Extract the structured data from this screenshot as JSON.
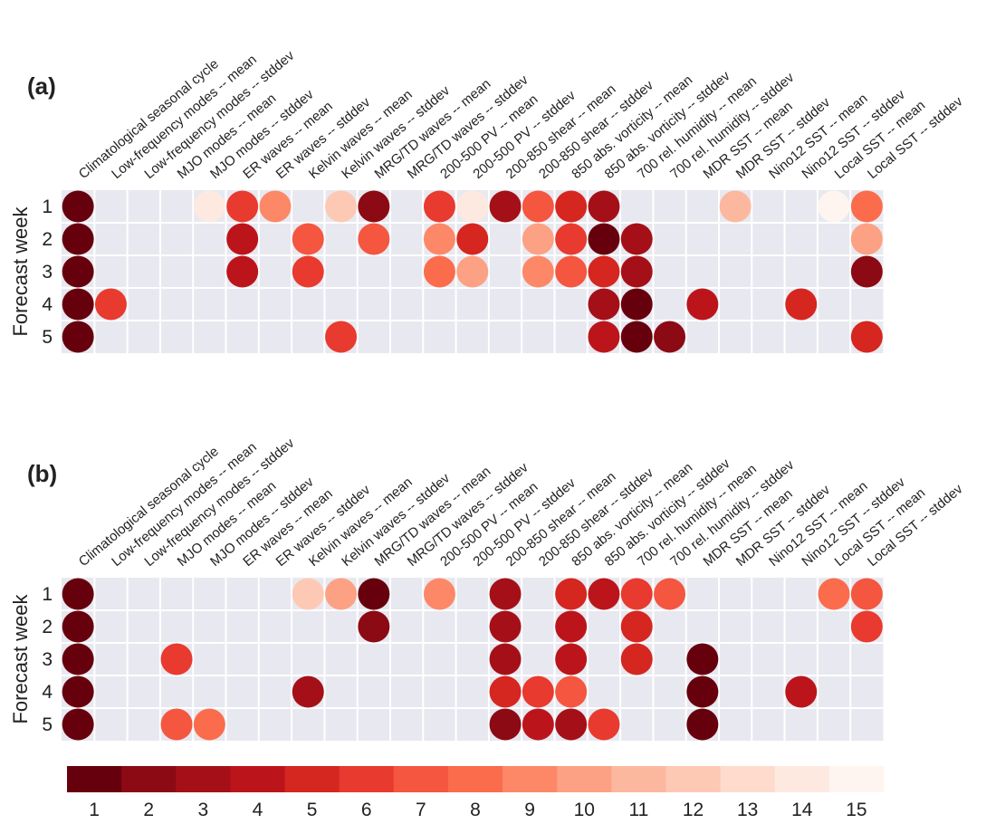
{
  "chart_data": [
    {
      "type": "heatmap",
      "panel_label": "(a)",
      "ylabel": "Forecast week",
      "rows": [
        "1",
        "2",
        "3",
        "4",
        "5"
      ],
      "columns": [
        "Climatological seasonal cycle",
        "Low-frequency modes -- mean",
        "Low-frequency modes -- stddev",
        "MJO modes -- mean",
        "MJO modes -- stddev",
        "ER waves -- mean",
        "ER waves -- stddev",
        "Kelvin waves -- mean",
        "Kelvin waves -- stddev",
        "MRG/TD waves -- mean",
        "MRG/TD waves -- stddev",
        "200-500 PV -- mean",
        "200-500 PV -- stddev",
        "200-850 shear -- mean",
        "200-850 shear -- stddev",
        "850 abs. vorticity -- mean",
        "850 abs. vorticity -- stddev",
        "700 rel. humidity -- mean",
        "700 rel. humidity -- stddev",
        "MDR SST -- mean",
        "MDR SST -- stddev",
        "Nino12 SST -- mean",
        "Nino12 SST -- stddev",
        "Local SST -- mean",
        "Local SST -- stddev"
      ],
      "values": [
        [
          1,
          null,
          null,
          null,
          14,
          6,
          9,
          null,
          12,
          2,
          null,
          6,
          14,
          3,
          7,
          5,
          3,
          null,
          null,
          null,
          11,
          null,
          null,
          15,
          8
        ],
        [
          1,
          null,
          null,
          null,
          null,
          4,
          null,
          7,
          null,
          7,
          null,
          9,
          5,
          null,
          10,
          6,
          1,
          3,
          null,
          null,
          null,
          null,
          null,
          null,
          10
        ],
        [
          1,
          null,
          null,
          null,
          null,
          4,
          null,
          6,
          null,
          null,
          null,
          8,
          10,
          null,
          9,
          7,
          5,
          3,
          null,
          null,
          null,
          null,
          null,
          null,
          2
        ],
        [
          1,
          6,
          null,
          null,
          null,
          null,
          null,
          null,
          null,
          null,
          null,
          null,
          null,
          null,
          null,
          null,
          3,
          1,
          null,
          4,
          null,
          null,
          5,
          null,
          null
        ],
        [
          1,
          null,
          null,
          null,
          null,
          null,
          null,
          null,
          6,
          null,
          null,
          null,
          null,
          null,
          null,
          null,
          4,
          1,
          2,
          null,
          null,
          null,
          null,
          null,
          5
        ]
      ]
    },
    {
      "type": "heatmap",
      "panel_label": "(b)",
      "ylabel": "Forecast week",
      "rows": [
        "1",
        "2",
        "3",
        "4",
        "5"
      ],
      "columns": [
        "Climatological seasonal cycle",
        "Low-frequency modes -- mean",
        "Low-frequency modes -- stddev",
        "MJO modes -- mean",
        "MJO modes -- stddev",
        "ER waves -- mean",
        "ER waves -- stddev",
        "Kelvin waves -- mean",
        "Kelvin waves -- stddev",
        "MRG/TD waves -- mean",
        "MRG/TD waves -- stddev",
        "200-500 PV -- mean",
        "200-500 PV -- stddev",
        "200-850 shear -- mean",
        "200-850 shear -- stddev",
        "850 abs. vorticity -- mean",
        "850 abs. vorticity -- stddev",
        "700 rel. humidity -- mean",
        "700 rel. humidity -- stddev",
        "MDR SST -- mean",
        "MDR SST -- stddev",
        "Nino12 SST -- mean",
        "Nino12 SST -- stddev",
        "Local SST -- mean",
        "Local SST -- stddev"
      ],
      "values": [
        [
          1,
          null,
          null,
          null,
          null,
          null,
          null,
          12,
          10,
          1,
          null,
          9,
          null,
          3,
          null,
          5,
          4,
          6,
          7,
          null,
          null,
          null,
          null,
          8,
          7
        ],
        [
          1,
          null,
          null,
          null,
          null,
          null,
          null,
          null,
          null,
          2,
          null,
          null,
          null,
          3,
          null,
          4,
          null,
          5,
          null,
          null,
          null,
          null,
          null,
          null,
          6
        ],
        [
          1,
          null,
          null,
          6,
          null,
          null,
          null,
          null,
          null,
          null,
          null,
          null,
          null,
          3,
          null,
          4,
          null,
          5,
          null,
          1,
          null,
          null,
          null,
          null,
          null
        ],
        [
          1,
          null,
          null,
          null,
          null,
          null,
          null,
          3,
          null,
          null,
          null,
          null,
          null,
          5,
          6,
          7,
          null,
          null,
          null,
          1,
          null,
          null,
          4,
          null,
          null
        ],
        [
          1,
          null,
          null,
          7,
          8,
          null,
          null,
          null,
          null,
          null,
          null,
          null,
          null,
          2,
          4,
          3,
          6,
          null,
          null,
          1,
          null,
          null,
          null,
          null,
          null
        ]
      ]
    }
  ],
  "colorbar": {
    "ticks": [
      "1",
      "2",
      "3",
      "4",
      "5",
      "6",
      "7",
      "8",
      "9",
      "10",
      "11",
      "12",
      "13",
      "14",
      "15"
    ],
    "range": [
      1,
      15
    ],
    "colors": [
      "#67000d",
      "#8c0a13",
      "#a51018",
      "#bb151b",
      "#d52620",
      "#e83a2f",
      "#f45640",
      "#fb6c4c",
      "#fc8868",
      "#fca184",
      "#fcb89f",
      "#fdc9b4",
      "#fedbcc",
      "#fee9e0",
      "#fff5f0"
    ]
  },
  "colors": {
    "cell_background": "#e8e8f0",
    "grid_line": "#ffffff"
  }
}
